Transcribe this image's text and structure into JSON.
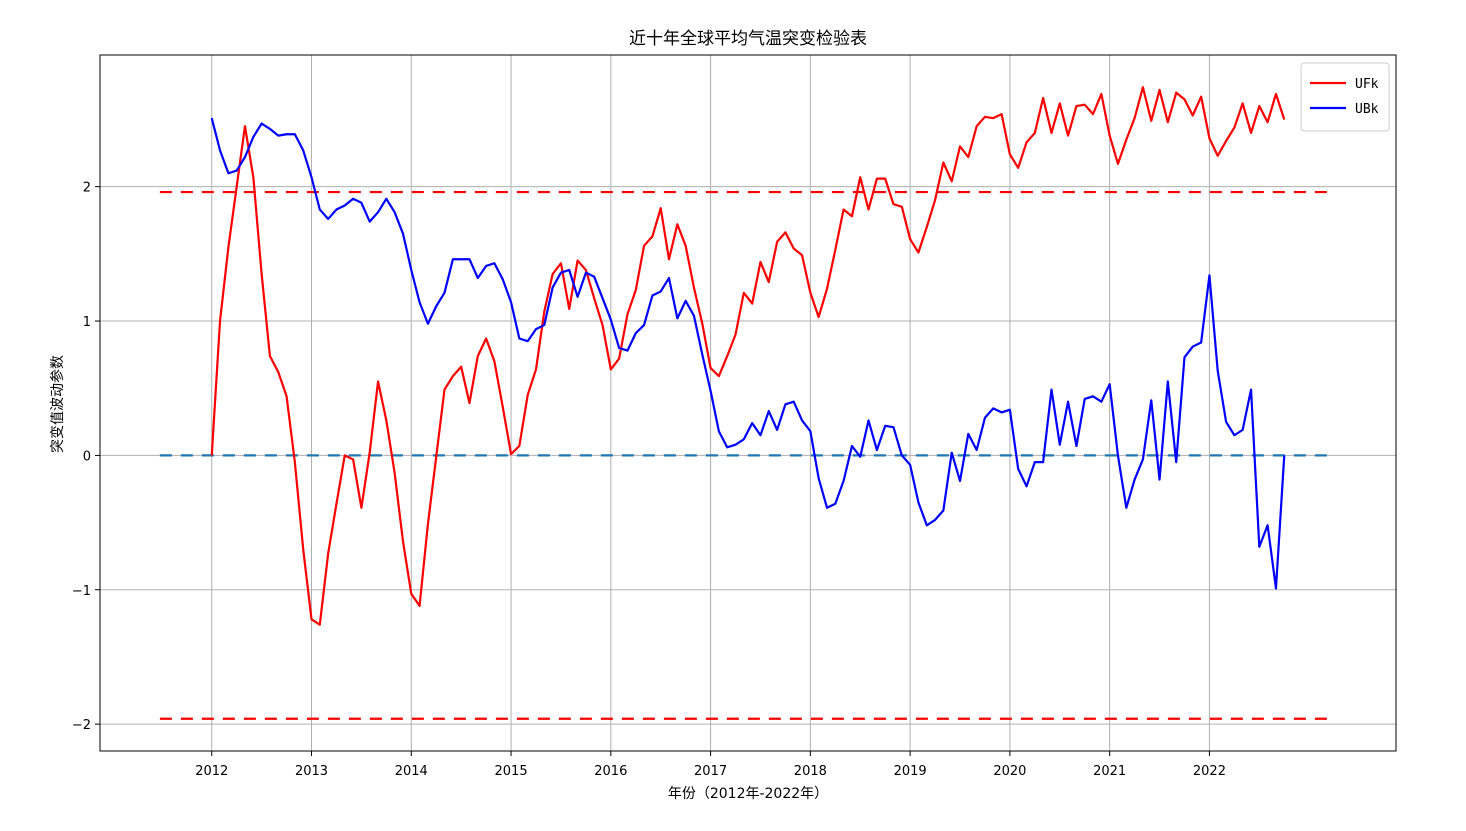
{
  "chart_data": {
    "type": "line",
    "title": "近十年全球平均气温突变检验表",
    "xlabel": "年份（2012年-2022年）",
    "ylabel": "突变值波动参数",
    "xlim": [
      2010.88,
      2023.87
    ],
    "ylim": [
      -2.2,
      2.98
    ],
    "x_ticks": [
      2012,
      2013,
      2014,
      2015,
      2016,
      2017,
      2018,
      2019,
      2020,
      2021,
      2022
    ],
    "x_tick_labels": [
      "2012",
      "2013",
      "2014",
      "2015",
      "2016",
      "2017",
      "2018",
      "2019",
      "2020",
      "2021",
      "2022"
    ],
    "y_ticks": [
      -2,
      -1,
      0,
      1,
      2
    ],
    "y_tick_labels": [
      "−2",
      "−1",
      "0",
      "1",
      "2"
    ],
    "grid": true,
    "legend_position": "top-right",
    "colors": {
      "UFk": "#ff0000",
      "UBk": "#0000ff",
      "critical": "#ff0000",
      "zero": "#1f77b4"
    },
    "reference_lines": [
      {
        "y": 1.96,
        "style": "dashed",
        "color": "#ff0000",
        "x_range": [
          2011.48,
          2023.2
        ]
      },
      {
        "y": -1.96,
        "style": "dashed",
        "color": "#ff0000",
        "x_range": [
          2011.48,
          2023.2
        ]
      },
      {
        "y": 0,
        "style": "dashed",
        "color": "#1f77b4",
        "x_range": [
          2011.48,
          2023.2
        ]
      }
    ],
    "x": [
      2012.0,
      2012.083,
      2012.167,
      2012.25,
      2012.333,
      2012.417,
      2012.5,
      2012.583,
      2012.667,
      2012.75,
      2012.833,
      2012.917,
      2013.0,
      2013.083,
      2013.167,
      2013.25,
      2013.333,
      2013.417,
      2013.5,
      2013.583,
      2013.667,
      2013.75,
      2013.833,
      2013.917,
      2014.0,
      2014.083,
      2014.167,
      2014.25,
      2014.333,
      2014.417,
      2014.5,
      2014.583,
      2014.667,
      2014.75,
      2014.833,
      2014.917,
      2015.0,
      2015.083,
      2015.167,
      2015.25,
      2015.333,
      2015.417,
      2015.5,
      2015.583,
      2015.667,
      2015.75,
      2015.833,
      2015.917,
      2016.0,
      2016.083,
      2016.167,
      2016.25,
      2016.333,
      2016.417,
      2016.5,
      2016.583,
      2016.667,
      2016.75,
      2016.833,
      2016.917,
      2017.0,
      2017.083,
      2017.167,
      2017.25,
      2017.333,
      2017.417,
      2017.5,
      2017.583,
      2017.667,
      2017.75,
      2017.833,
      2017.917,
      2018.0,
      2018.083,
      2018.167,
      2018.25,
      2018.333,
      2018.417,
      2018.5,
      2018.583,
      2018.667,
      2018.75,
      2018.833,
      2018.917,
      2019.0,
      2019.083,
      2019.167,
      2019.25,
      2019.333,
      2019.417,
      2019.5,
      2019.583,
      2019.667,
      2019.75,
      2019.833,
      2019.917,
      2020.0,
      2020.083,
      2020.167,
      2020.25,
      2020.333,
      2020.417,
      2020.5,
      2020.583,
      2020.667,
      2020.75,
      2020.833,
      2020.917,
      2021.0,
      2021.083,
      2021.167,
      2021.25,
      2021.333,
      2021.417,
      2021.5,
      2021.583,
      2021.667,
      2021.75,
      2021.833,
      2021.917,
      2022.0,
      2022.083,
      2022.167,
      2022.25,
      2022.333,
      2022.417,
      2022.5,
      2022.583,
      2022.667,
      2022.75
    ],
    "series": [
      {
        "name": "UFk",
        "values": [
          0.0,
          1.0,
          1.55,
          2.0,
          2.45,
          2.07,
          1.35,
          0.74,
          0.62,
          0.44,
          -0.05,
          -0.7,
          -1.22,
          -1.26,
          -0.73,
          -0.36,
          0.0,
          -0.03,
          -0.39,
          0.02,
          0.55,
          0.26,
          -0.13,
          -0.64,
          -1.03,
          -1.12,
          -0.51,
          -0.01,
          0.49,
          0.59,
          0.66,
          0.39,
          0.74,
          0.87,
          0.7,
          0.36,
          0.01,
          0.07,
          0.45,
          0.64,
          1.07,
          1.35,
          1.43,
          1.09,
          1.45,
          1.38,
          1.17,
          0.97,
          0.64,
          0.72,
          1.05,
          1.23,
          1.56,
          1.63,
          1.84,
          1.46,
          1.72,
          1.56,
          1.25,
          0.98,
          0.65,
          0.59,
          0.74,
          0.9,
          1.21,
          1.13,
          1.44,
          1.29,
          1.59,
          1.66,
          1.54,
          1.49,
          1.21,
          1.03,
          1.24,
          1.53,
          1.83,
          1.78,
          2.07,
          1.83,
          2.06,
          2.06,
          1.87,
          1.85,
          1.61,
          1.51,
          1.7,
          1.9,
          2.18,
          2.04,
          2.3,
          2.22,
          2.45,
          2.52,
          2.51,
          2.54,
          2.24,
          2.14,
          2.33,
          2.4,
          2.66,
          2.4,
          2.62,
          2.38,
          2.6,
          2.61,
          2.54,
          2.69,
          2.38,
          2.17,
          2.35,
          2.51,
          2.74,
          2.49,
          2.72,
          2.48,
          2.7,
          2.65,
          2.53,
          2.67,
          2.36,
          2.23,
          2.34,
          2.44,
          2.62,
          2.4,
          2.6,
          2.48,
          2.69,
          2.5
        ]
      },
      {
        "name": "UBk",
        "values": [
          2.51,
          2.27,
          2.1,
          2.12,
          2.22,
          2.37,
          2.47,
          2.43,
          2.38,
          2.39,
          2.39,
          2.27,
          2.07,
          1.83,
          1.76,
          1.83,
          1.86,
          1.91,
          1.88,
          1.74,
          1.81,
          1.91,
          1.81,
          1.65,
          1.38,
          1.14,
          0.98,
          1.11,
          1.21,
          1.46,
          1.46,
          1.46,
          1.32,
          1.41,
          1.43,
          1.31,
          1.14,
          0.87,
          0.85,
          0.94,
          0.97,
          1.25,
          1.36,
          1.38,
          1.18,
          1.36,
          1.33,
          1.17,
          1.01,
          0.8,
          0.78,
          0.91,
          0.97,
          1.19,
          1.22,
          1.32,
          1.02,
          1.15,
          1.04,
          0.75,
          0.48,
          0.18,
          0.06,
          0.08,
          0.12,
          0.24,
          0.15,
          0.33,
          0.19,
          0.38,
          0.4,
          0.26,
          0.18,
          -0.17,
          -0.39,
          -0.36,
          -0.19,
          0.07,
          -0.01,
          0.26,
          0.04,
          0.22,
          0.21,
          0.0,
          -0.07,
          -0.35,
          -0.52,
          -0.48,
          -0.41,
          0.02,
          -0.19,
          0.16,
          0.04,
          0.28,
          0.35,
          0.32,
          0.34,
          -0.1,
          -0.23,
          -0.05,
          -0.05,
          0.49,
          0.08,
          0.4,
          0.07,
          0.42,
          0.44,
          0.4,
          0.53,
          0.0,
          -0.39,
          -0.18,
          -0.03,
          0.41,
          -0.18,
          0.55,
          -0.05,
          0.73,
          0.81,
          0.84,
          1.34,
          0.63,
          0.25,
          0.15,
          0.19,
          0.49,
          -0.68,
          -0.52,
          -0.99,
          0.0
        ]
      }
    ]
  }
}
